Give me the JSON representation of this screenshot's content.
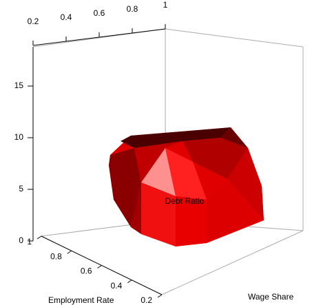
{
  "chart_data": {
    "type": "surface3d",
    "xlabel": "Wage Share",
    "ylabel": "Employment Rate",
    "zlabel": "Debt Ratio",
    "xlim": [
      0.2,
      1
    ],
    "xticks": [
      0.2,
      0.4,
      0.6,
      0.8,
      1
    ],
    "ylim": [
      0.2,
      1
    ],
    "yticks": [
      0.2,
      0.4,
      0.6,
      0.8,
      1
    ],
    "zlim": [
      0,
      18.8
    ],
    "zticks": [
      0,
      5,
      10,
      15
    ],
    "color": "#ff0000"
  }
}
